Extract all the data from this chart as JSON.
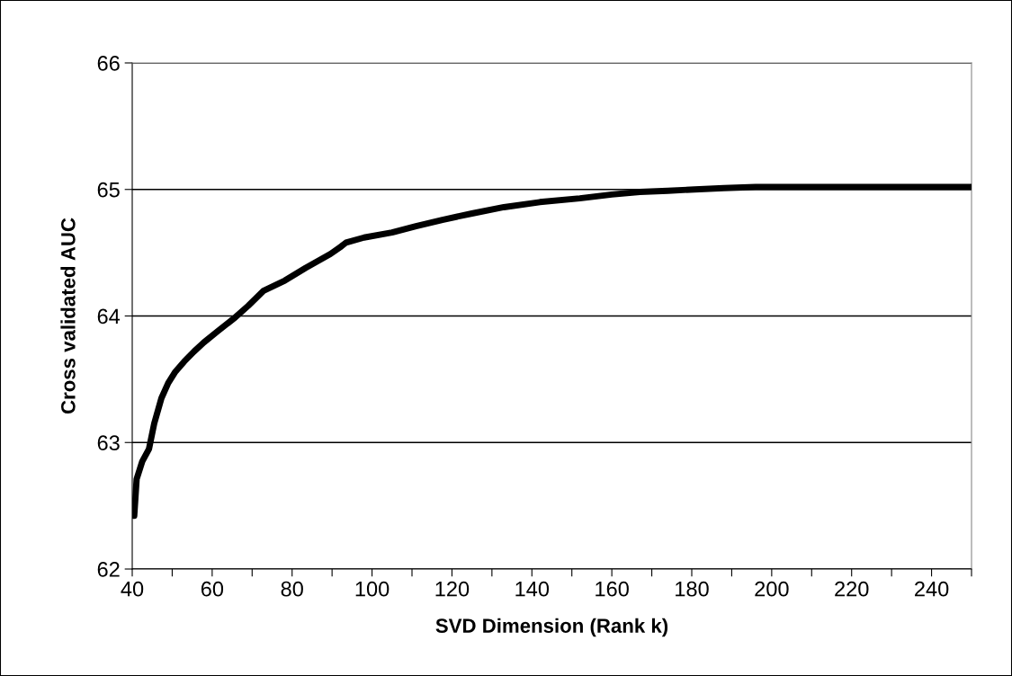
{
  "chart_data": {
    "type": "line",
    "xlabel": "SVD Dimension (Rank k)",
    "ylabel": "Cross validated AUC",
    "series": [
      {
        "color": "#000000",
        "x": [
          40.5,
          41.1,
          42.5,
          44.2,
          45.5,
          47.3,
          49,
          50.8,
          53,
          55.5,
          57.9,
          61.4,
          65.8,
          69,
          72.9,
          78.2,
          83.4,
          89.6,
          92.3,
          93.5,
          98,
          105,
          111,
          117.6,
          125,
          133,
          142,
          152,
          160,
          167,
          174,
          180.7,
          188,
          196,
          205,
          220,
          235,
          250
        ],
        "values": [
          62.42,
          62.71,
          62.85,
          62.95,
          63.15,
          63.35,
          63.47,
          63.56,
          63.64,
          63.72,
          63.79,
          63.88,
          63.99,
          64.08,
          64.2,
          64.28,
          64.38,
          64.49,
          64.55,
          64.58,
          64.62,
          64.66,
          64.71,
          64.76,
          64.81,
          64.86,
          64.9,
          64.93,
          64.96,
          64.98,
          64.99,
          65.0,
          65.01,
          65.02,
          65.02,
          65.02,
          65.02,
          65.02
        ]
      }
    ],
    "xlim": [
      40,
      250
    ],
    "xticks": [
      40,
      {
        "value": 50,
        "label": null
      },
      60,
      {
        "value": 70,
        "label": null
      },
      80,
      {
        "value": 90,
        "label": null
      },
      100,
      {
        "value": 110,
        "label": null
      },
      120,
      {
        "value": 130,
        "label": null
      },
      140,
      {
        "value": 150,
        "label": null
      },
      160,
      {
        "value": 170,
        "label": null
      },
      180,
      {
        "value": 190,
        "label": null
      },
      200,
      {
        "value": 210,
        "label": null
      },
      220,
      {
        "value": 230,
        "label": null
      },
      240,
      {
        "value": 250,
        "label": null
      }
    ],
    "ylim": [
      62,
      66
    ],
    "yticks": [
      62,
      63,
      64,
      65,
      66
    ],
    "grid": "y",
    "legend": false,
    "marker": "none",
    "line_style": "solid"
  }
}
